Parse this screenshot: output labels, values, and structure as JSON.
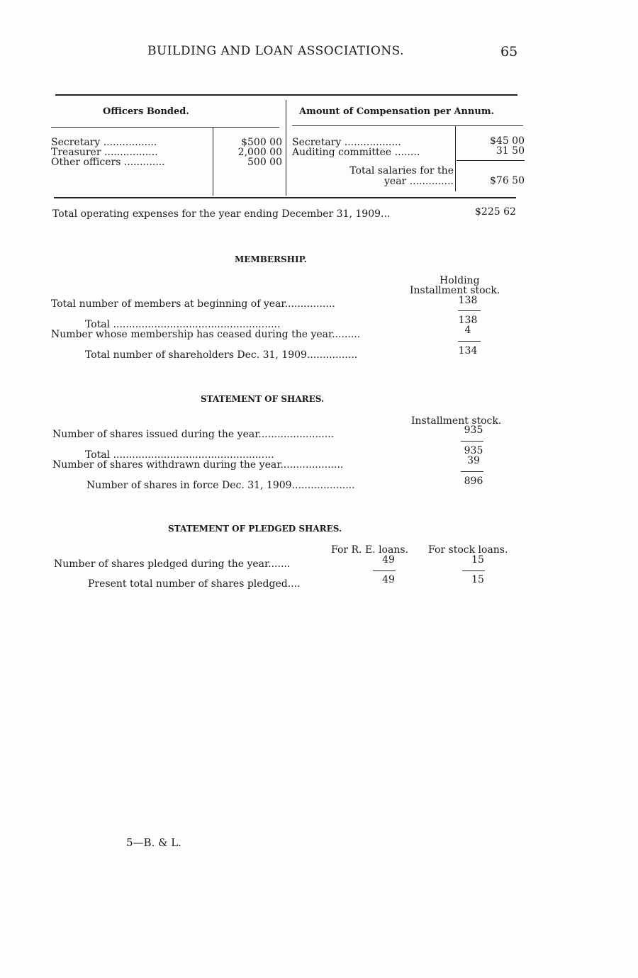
{
  "header": {
    "title": "BUILDING AND LOAN ASSOCIATIONS.",
    "page_number": "65"
  },
  "officers": {
    "left_heading": "Officers Bonded.",
    "right_heading": "Amount of Compensation per Annum.",
    "bonded": [
      {
        "label": "Secretary .................",
        "value": "$500 00"
      },
      {
        "label": "Treasurer .................",
        "value": "2,000 00"
      },
      {
        "label": "Other officers .............",
        "value": "500 00"
      }
    ],
    "compensation": [
      {
        "label": "Secretary ..................",
        "value": "$45 00"
      },
      {
        "label": "Auditing committee ........",
        "value": "31 50"
      }
    ],
    "total_label_1": "Total salaries for the",
    "total_label_2": "year ..............",
    "total_value": "$76 50"
  },
  "operating": {
    "label": "Total operating expenses for the year ending December 31, 1909...",
    "value": "$225 62"
  },
  "membership": {
    "heading": "MEMBERSHIP.",
    "col_1": "Holding",
    "col_2": "Installment stock.",
    "rows": [
      {
        "label": "Total number of members at beginning of year................",
        "value": "138"
      },
      {
        "label": "Total .....................................................",
        "value": "138"
      },
      {
        "label": "Number whose membership has ceased during the year.........",
        "value": "4"
      },
      {
        "label": "Total number of shareholders Dec. 31, 1909................",
        "value": "134"
      }
    ]
  },
  "shares": {
    "heading": "STATEMENT OF SHARES.",
    "col": "Installment stock.",
    "rows": [
      {
        "label": "Number of shares issued during the year........................",
        "value": "935"
      },
      {
        "label": "Total ...................................................",
        "value": "935"
      },
      {
        "label": "Number of shares withdrawn during the year....................",
        "value": "39"
      },
      {
        "label": "Number of shares in force Dec. 31, 1909....................",
        "value": "896"
      }
    ]
  },
  "pledged": {
    "heading": "STATEMENT OF PLEDGED SHARES.",
    "col_1": "For R. E. loans.",
    "col_2": "For stock loans.",
    "rows": [
      {
        "label": "Number of shares pledged during the year.......",
        "v1": "49",
        "v2": "15"
      },
      {
        "label": "Present total number of shares pledged....",
        "v1": "49",
        "v2": "15"
      }
    ]
  },
  "footer": {
    "signature": "5—B. & L."
  }
}
